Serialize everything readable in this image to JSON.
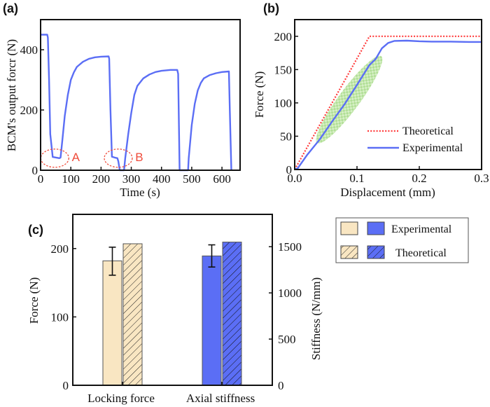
{
  "chart_data": [
    {
      "panel": "(a)",
      "type": "line",
      "title": "",
      "xlabel": "Time (s)",
      "ylabel": "BCM's output forcr (N)",
      "xlim": [
        0,
        660
      ],
      "ylim": [
        0,
        500
      ],
      "xticks": [
        "0",
        "100",
        "200",
        "300",
        "400",
        "500",
        "600"
      ],
      "xtick_values": [
        0,
        100,
        200,
        300,
        400,
        500,
        600
      ],
      "yticks": [
        "0",
        "200",
        "400"
      ],
      "ytick_values": [
        0,
        200,
        400
      ],
      "grid": false,
      "series": [
        {
          "name": "Output force",
          "color": "#5b6ef5",
          "x": [
            0,
            22,
            24,
            28,
            32,
            40,
            62,
            66,
            72,
            80,
            90,
            100,
            110,
            120,
            140,
            160,
            180,
            200,
            225,
            227,
            231,
            236,
            245,
            254,
            257,
            262,
            266,
            276,
            280,
            290,
            300,
            310,
            320,
            340,
            360,
            380,
            400,
            430,
            452,
            455,
            460,
            470,
            488,
            490,
            500,
            510,
            520,
            530,
            540,
            560,
            580,
            600,
            623,
            626,
            631
          ],
          "y": [
            450,
            450,
            440,
            300,
            120,
            44,
            40,
            42,
            100,
            180,
            250,
            300,
            325,
            343,
            360,
            370,
            375,
            377,
            378,
            370,
            200,
            45,
            42,
            40,
            30,
            0,
            0,
            0,
            40,
            120,
            190,
            250,
            280,
            305,
            318,
            326,
            330,
            333,
            333,
            320,
            0,
            0,
            0,
            40,
            150,
            220,
            265,
            290,
            305,
            316,
            322,
            326,
            328,
            200,
            0
          ]
        }
      ],
      "annotations": [
        {
          "text": "A",
          "color": "#ef4b3a",
          "ellipse_center": [
            47,
            40
          ],
          "note": "dashed red ellipse"
        },
        {
          "text": "B",
          "color": "#ef4b3a",
          "ellipse_center": [
            257,
            40
          ],
          "note": "dashed red ellipse"
        }
      ]
    },
    {
      "panel": "(b)",
      "type": "line",
      "title": "",
      "xlabel": "Displacement (mm)",
      "ylabel": "Force (N)",
      "xlim": [
        0,
        0.3
      ],
      "ylim": [
        0,
        225
      ],
      "xticks": [
        "0.0",
        "0.1",
        "0.2",
        "0.3"
      ],
      "xtick_values": [
        0,
        0.1,
        0.2,
        0.3
      ],
      "yticks": [
        "0",
        "50",
        "100",
        "150",
        "200"
      ],
      "ytick_values": [
        0,
        50,
        100,
        150,
        200
      ],
      "grid": false,
      "legend_position": "bottom-right",
      "series": [
        {
          "name": "Theoretical",
          "color": "#ff3b3b",
          "style": "dotted",
          "x": [
            0,
            0.12,
            0.3
          ],
          "y": [
            0,
            200,
            200
          ]
        },
        {
          "name": "Experimental",
          "color": "#5b6ef5",
          "style": "solid",
          "x": [
            0,
            0.005,
            0.02,
            0.04,
            0.06,
            0.08,
            0.1,
            0.12,
            0.13,
            0.14,
            0.15,
            0.16,
            0.18,
            0.2,
            0.22,
            0.25,
            0.28,
            0.3
          ],
          "y": [
            0,
            2,
            22,
            45,
            72,
            98,
            127,
            157,
            166,
            182,
            190,
            193,
            193.5,
            192.5,
            192,
            192,
            191.5,
            191.5
          ]
        }
      ],
      "highlight": {
        "shape": "ellipse",
        "color": "#8fd16a",
        "pattern": "checkered",
        "x_range": [
          0.04,
          0.135
        ],
        "y_range": [
          45,
          165
        ]
      }
    },
    {
      "panel": "(c)",
      "type": "bar",
      "title": "",
      "categories": [
        "Locking force",
        "Axial stiffness"
      ],
      "ylabel": "Force (N)",
      "ylabel_right": "Stiffness (N/mm)",
      "ylim": [
        0,
        250
      ],
      "ylim_right": [
        0,
        1850
      ],
      "yticks": [
        "0",
        "100",
        "200"
      ],
      "ytick_values": [
        0,
        100,
        200
      ],
      "yticks_right": [
        "0",
        "500",
        "1000",
        "1500"
      ],
      "ytick_values_right": [
        0,
        500,
        1000,
        1500
      ],
      "grid": false,
      "legend_position": "outside-right",
      "legend": [
        {
          "label": "Experimental",
          "swatches": [
            "#f9e6c2",
            "#5b6ef5"
          ],
          "hatch": false
        },
        {
          "label": "Theoretical",
          "swatches": [
            "#f9e6c2",
            "#5b6ef5"
          ],
          "hatch": true
        }
      ],
      "series": [
        {
          "name": "Experimental",
          "hatch": false,
          "bars": [
            {
              "category": "Locking force",
              "axis": "left",
              "value": 182,
              "error_low": 161,
              "error_high": 202,
              "color": "#f9e6c2"
            },
            {
              "category": "Axial stiffness",
              "axis": "right",
              "value": 1400,
              "error_low": 1280,
              "error_high": 1520,
              "color": "#5b6ef5"
            }
          ]
        },
        {
          "name": "Theoretical",
          "hatch": true,
          "bars": [
            {
              "category": "Locking force",
              "axis": "left",
              "value": 207,
              "color": "#f9e6c2"
            },
            {
              "category": "Axial stiffness",
              "axis": "right",
              "value": 1550,
              "color": "#5b6ef5"
            }
          ]
        }
      ]
    }
  ]
}
